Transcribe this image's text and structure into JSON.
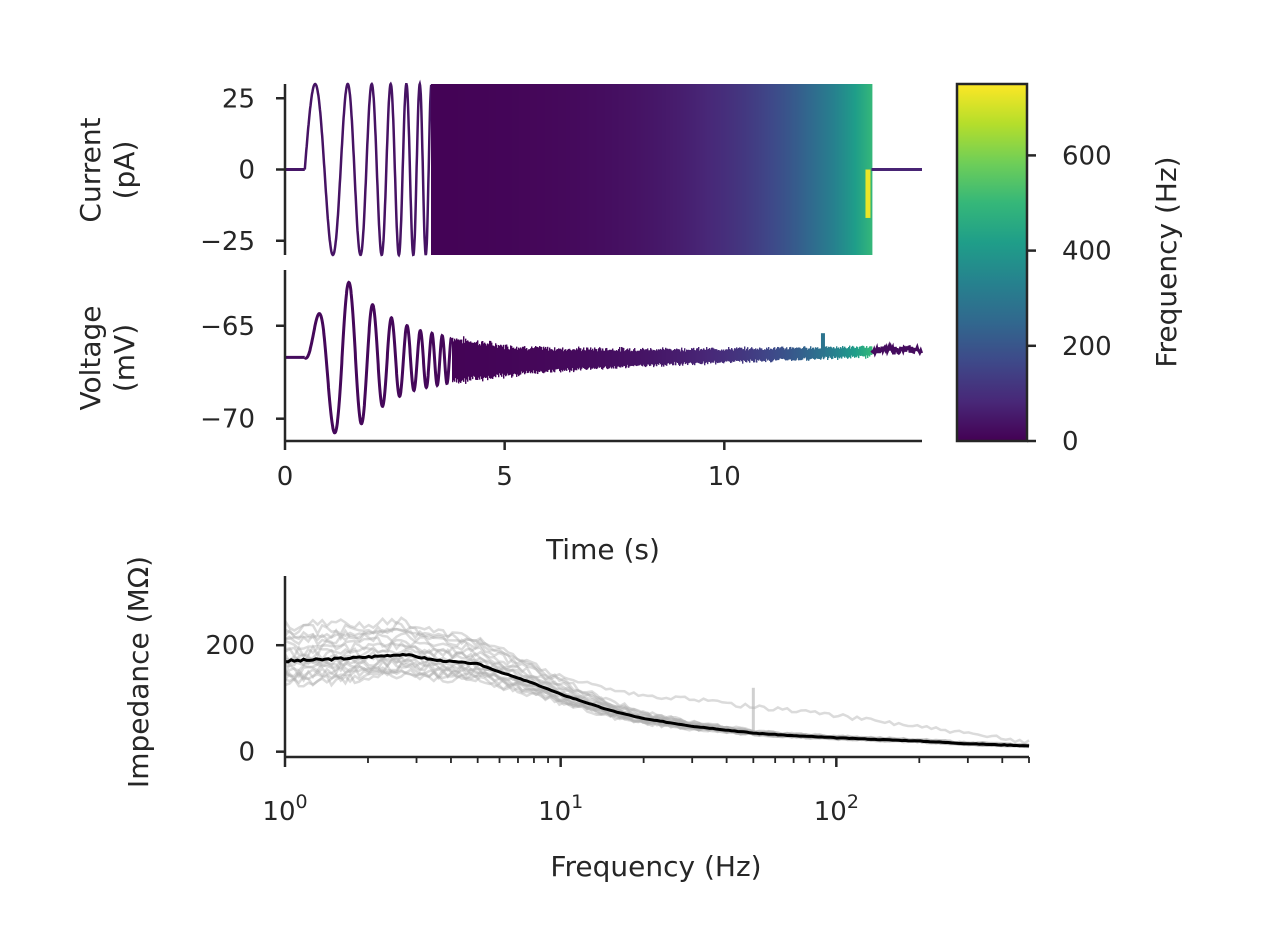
{
  "colors": {
    "viridis": [
      "#440154",
      "#482878",
      "#3e4989",
      "#31688e",
      "#26828e",
      "#1f9e89",
      "#35b779",
      "#6ece58",
      "#b5de2b",
      "#fde725"
    ],
    "axis": "#262626",
    "mean_trace": "#000000",
    "trial_trace": "#b0b0b0"
  },
  "chart_data": [
    {
      "type": "line",
      "panel": "current",
      "xlabel": "",
      "ylabel": "Current\n(pA)",
      "xlim": [
        0,
        14.5
      ],
      "ylim": [
        -30,
        30
      ],
      "yticks": [
        25,
        0,
        -25
      ],
      "ytick_labels": [
        "25",
        "0",
        "−25"
      ],
      "stimulus": {
        "kind": "chirp",
        "amplitude_pA": 30,
        "start_s": 0.45,
        "end_s": 13.35,
        "f_start_Hz": 1,
        "f_end_Hz": 500,
        "record_end_s": 14.5,
        "color_by": "instantaneous frequency"
      }
    },
    {
      "type": "line",
      "panel": "voltage",
      "xlabel": "Time (s)",
      "ylabel": "Voltage\n(mV)",
      "xlim": [
        0,
        14.5
      ],
      "ylim": [
        -71.2,
        -62.0
      ],
      "xticks": [
        0,
        5,
        10
      ],
      "xtick_labels": [
        "0",
        "5",
        "10"
      ],
      "yticks": [
        -65,
        -70
      ],
      "ytick_labels": [
        "−65",
        "−70"
      ],
      "response": {
        "baseline_mV": -66.7,
        "end_baseline_mV": -66.3,
        "envelope": {
          "t": [
            0.45,
            0.9,
            1.3,
            1.7,
            2.0,
            2.5,
            3.0,
            4.0,
            5.0,
            6.0,
            8.0,
            10.0,
            12.0,
            13.35
          ],
          "amp_mV": [
            0.0,
            3.5,
            4.4,
            3.6,
            2.9,
            2.1,
            1.6,
            1.1,
            0.8,
            0.6,
            0.45,
            0.35,
            0.3,
            0.25
          ]
        },
        "baseline_points": [
          [
            0,
            -66.7
          ],
          [
            5,
            -66.9
          ],
          [
            10,
            -66.6
          ],
          [
            13.35,
            -66.4
          ],
          [
            14.5,
            -66.3
          ]
        ]
      }
    },
    {
      "type": "colorbar",
      "label": "Frequency (Hz)",
      "range": [
        0,
        750
      ],
      "ticks": [
        0,
        200,
        400,
        600
      ],
      "tick_labels": [
        "0",
        "200",
        "400",
        "600"
      ],
      "colormap": "viridis"
    },
    {
      "type": "line",
      "panel": "impedance",
      "xlabel": "Frequency (Hz)",
      "ylabel": "Impedance (MΩ)",
      "xscale": "log",
      "xlim": [
        1,
        500
      ],
      "ylim": [
        -10,
        330
      ],
      "xticks": [
        1,
        10,
        100
      ],
      "xtick_labels": [
        "10",
        "10",
        "10"
      ],
      "xtick_exponents": [
        "0",
        "1",
        "2"
      ],
      "yticks": [
        0,
        200
      ],
      "ytick_labels": [
        "0",
        "200"
      ],
      "mean": {
        "freq_Hz": [
          1,
          1.5,
          2,
          2.7,
          3.5,
          5,
          6,
          8,
          10,
          15,
          20,
          30,
          50,
          70,
          100,
          200,
          300,
          500
        ],
        "impedance_MOhm": [
          170,
          174,
          178,
          183,
          172,
          165,
          150,
          128,
          108,
          78,
          62,
          48,
          35,
          30,
          26,
          20,
          15,
          11
        ]
      },
      "trials": {
        "count": 18,
        "freq_Hz": [
          1,
          1.5,
          2,
          2.7,
          3.5,
          5,
          6,
          8,
          10,
          15,
          20,
          30,
          50,
          70,
          100,
          200,
          300,
          500
        ],
        "scales": [
          1.0,
          0.85,
          0.9,
          1.1,
          1.25,
          0.8,
          0.95,
          1.3,
          0.88,
          1.05,
          0.92,
          1.2,
          0.78,
          1.15,
          0.97,
          1.35,
          0.83,
          1.08
        ],
        "outlier_high_Hz": {
          "scale": 1.55,
          "extra_at_high_MOhm": 40
        }
      }
    }
  ]
}
